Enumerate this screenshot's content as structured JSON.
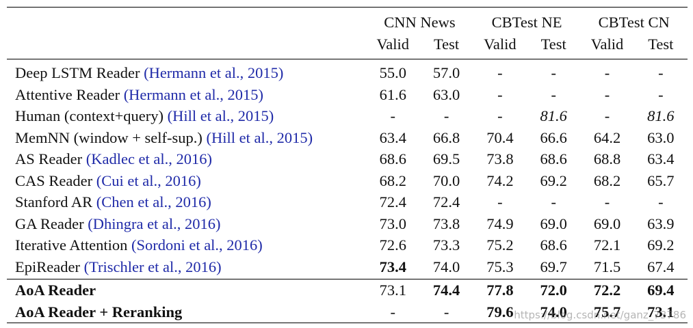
{
  "groups": [
    {
      "label": "CNN News",
      "sub": [
        "Valid",
        "Test"
      ]
    },
    {
      "label": "CBTest NE",
      "sub": [
        "Valid",
        "Test"
      ]
    },
    {
      "label": "CBTest CN",
      "sub": [
        "Valid",
        "Test"
      ]
    }
  ],
  "rows": [
    {
      "model": "Deep LSTM Reader",
      "cite": "(Hermann et al., 2015)",
      "v": [
        "55.0",
        "57.0",
        "-",
        "-",
        "-",
        "-"
      ]
    },
    {
      "model": "Attentive Reader",
      "cite": "(Hermann et al., 2015)",
      "v": [
        "61.6",
        "63.0",
        "-",
        "-",
        "-",
        "-"
      ]
    },
    {
      "model": "Human (context+query)",
      "cite": "(Hill et al., 2015)",
      "v": [
        "-",
        "-",
        "-",
        "81.6",
        "-",
        "81.6"
      ]
    },
    {
      "model": "MemNN (window + self-sup.)",
      "cite": "(Hill et al., 2015)",
      "v": [
        "63.4",
        "66.8",
        "70.4",
        "66.6",
        "64.2",
        "63.0"
      ]
    },
    {
      "model": "AS Reader",
      "cite": "(Kadlec et al., 2016)",
      "v": [
        "68.6",
        "69.5",
        "73.8",
        "68.6",
        "68.8",
        "63.4"
      ]
    },
    {
      "model": "CAS Reader",
      "cite": "(Cui et al., 2016)",
      "v": [
        "68.2",
        "70.0",
        "74.2",
        "69.2",
        "68.2",
        "65.7"
      ]
    },
    {
      "model": "Stanford AR",
      "cite": "(Chen et al., 2016)",
      "v": [
        "72.4",
        "72.4",
        "-",
        "-",
        "-",
        "-"
      ]
    },
    {
      "model": "GA Reader",
      "cite": "(Dhingra et al., 2016)",
      "v": [
        "73.0",
        "73.8",
        "74.9",
        "69.0",
        "69.0",
        "63.9"
      ]
    },
    {
      "model": "Iterative Attention",
      "cite": "(Sordoni et al., 2016)",
      "v": [
        "72.6",
        "73.3",
        "75.2",
        "68.6",
        "72.1",
        "69.2"
      ]
    },
    {
      "model": "EpiReader",
      "cite": "(Trischler et al., 2016)",
      "v": [
        "73.4",
        "74.0",
        "75.3",
        "69.7",
        "71.5",
        "67.4"
      ]
    }
  ],
  "ours": [
    {
      "model": "AoA Reader",
      "v": [
        "73.1",
        "74.4",
        "77.8",
        "72.0",
        "72.2",
        "69.4"
      ]
    },
    {
      "model": "AoA Reader + Reranking",
      "v": [
        "-",
        "-",
        "79.6",
        "74.0",
        "75.7",
        "73.1"
      ]
    }
  ],
  "watermark": "https://blog.csdn.net/ganz_73786"
}
